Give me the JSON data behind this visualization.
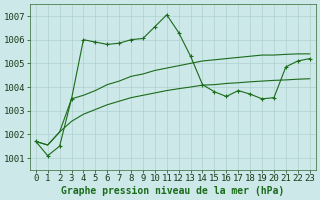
{
  "title": "Graphe pression niveau de la mer (hPa)",
  "bg_color": "#cce8e8",
  "grid_color": "#b0d0d0",
  "line_color": "#1a6b1a",
  "marker_color": "#1a6b1a",
  "ylim": [
    1000.5,
    1007.5
  ],
  "yticks": [
    1001,
    1002,
    1003,
    1004,
    1005,
    1006,
    1007
  ],
  "xlim": [
    -0.5,
    23.5
  ],
  "xticks": [
    0,
    1,
    2,
    3,
    4,
    5,
    6,
    7,
    8,
    9,
    10,
    11,
    12,
    13,
    14,
    15,
    16,
    17,
    18,
    19,
    20,
    21,
    22,
    23
  ],
  "tick_fontsize": 6.5,
  "xlabel_fontsize": 7,
  "series1_x": [
    0,
    1,
    2,
    3,
    4,
    5,
    6,
    7,
    8,
    9,
    10,
    11,
    12,
    13,
    14,
    15,
    16,
    17,
    18,
    19,
    20,
    21,
    22,
    23
  ],
  "series1_y": [
    1001.7,
    1001.1,
    1001.5,
    1003.5,
    1006.0,
    1005.9,
    1005.8,
    1005.85,
    1006.0,
    1006.05,
    1006.55,
    1007.05,
    1006.3,
    1005.3,
    1004.1,
    1003.8,
    1003.6,
    1003.85,
    1003.7,
    1003.5,
    1003.55,
    1004.85,
    1005.1,
    1005.2
  ],
  "series2_x": [
    0,
    1,
    2,
    3,
    4,
    5,
    6,
    7,
    8,
    9,
    10,
    11,
    12,
    13,
    14,
    15,
    16,
    17,
    18,
    19,
    20,
    21,
    22,
    23
  ],
  "series2_y": [
    1001.7,
    1001.55,
    1002.1,
    1003.5,
    1003.65,
    1003.85,
    1004.1,
    1004.25,
    1004.45,
    1004.55,
    1004.7,
    1004.8,
    1004.9,
    1005.0,
    1005.1,
    1005.15,
    1005.2,
    1005.25,
    1005.3,
    1005.35,
    1005.35,
    1005.38,
    1005.4,
    1005.4
  ],
  "series3_x": [
    0,
    1,
    2,
    3,
    4,
    5,
    6,
    7,
    8,
    9,
    10,
    11,
    12,
    13,
    14,
    15,
    16,
    17,
    18,
    19,
    20,
    21,
    22,
    23
  ],
  "series3_y": [
    1001.7,
    1001.55,
    1002.1,
    1002.55,
    1002.85,
    1003.05,
    1003.25,
    1003.4,
    1003.55,
    1003.65,
    1003.75,
    1003.85,
    1003.93,
    1004.0,
    1004.08,
    1004.1,
    1004.15,
    1004.18,
    1004.22,
    1004.25,
    1004.28,
    1004.3,
    1004.33,
    1004.35
  ]
}
